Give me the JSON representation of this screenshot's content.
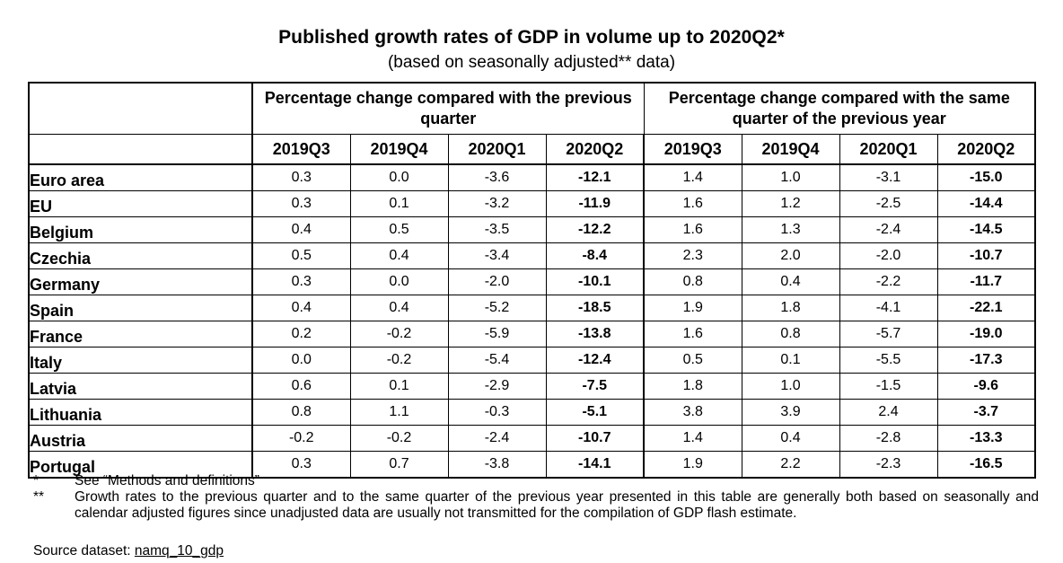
{
  "title": "Published growth rates of GDP in volume up to 2020Q2*",
  "subtitle": "(based on seasonally adjusted** data)",
  "table": {
    "group_headers": [
      "Percentage change compared with the previous quarter",
      "Percentage change compared with the same quarter of the previous year"
    ],
    "quarters": [
      "2019Q3",
      "2019Q4",
      "2020Q1",
      "2020Q2",
      "2019Q3",
      "2019Q4",
      "2020Q1",
      "2020Q2"
    ],
    "rows": [
      {
        "country": "Euro area",
        "values": [
          "0.3",
          "0.0",
          "-3.6",
          "-12.1",
          "1.4",
          "1.0",
          "-3.1",
          "-15.0"
        ]
      },
      {
        "country": "EU",
        "values": [
          "0.3",
          "0.1",
          "-3.2",
          "-11.9",
          "1.6",
          "1.2",
          "-2.5",
          "-14.4"
        ]
      },
      {
        "country": "Belgium",
        "values": [
          "0.4",
          "0.5",
          "-3.5",
          "-12.2",
          "1.6",
          "1.3",
          "-2.4",
          "-14.5"
        ]
      },
      {
        "country": "Czechia",
        "values": [
          "0.5",
          "0.4",
          "-3.4",
          "-8.4",
          "2.3",
          "2.0",
          "-2.0",
          "-10.7"
        ]
      },
      {
        "country": "Germany",
        "values": [
          "0.3",
          "0.0",
          "-2.0",
          "-10.1",
          "0.8",
          "0.4",
          "-2.2",
          "-11.7"
        ]
      },
      {
        "country": "Spain",
        "values": [
          "0.4",
          "0.4",
          "-5.2",
          "-18.5",
          "1.9",
          "1.8",
          "-4.1",
          "-22.1"
        ]
      },
      {
        "country": "France",
        "values": [
          "0.2",
          "-0.2",
          "-5.9",
          "-13.8",
          "1.6",
          "0.8",
          "-5.7",
          "-19.0"
        ]
      },
      {
        "country": "Italy",
        "values": [
          "0.0",
          "-0.2",
          "-5.4",
          "-12.4",
          "0.5",
          "0.1",
          "-5.5",
          "-17.3"
        ]
      },
      {
        "country": "Latvia",
        "values": [
          "0.6",
          "0.1",
          "-2.9",
          "-7.5",
          "1.8",
          "1.0",
          "-1.5",
          "-9.6"
        ]
      },
      {
        "country": "Lithuania",
        "values": [
          "0.8",
          "1.1",
          "-0.3",
          "-5.1",
          "3.8",
          "3.9",
          "2.4",
          "-3.7"
        ]
      },
      {
        "country": "Austria",
        "values": [
          "-0.2",
          "-0.2",
          "-2.4",
          "-10.7",
          "1.4",
          "0.4",
          "-2.8",
          "-13.3"
        ]
      },
      {
        "country": "Portugal",
        "values": [
          "0.3",
          "0.7",
          "-3.8",
          "-14.1",
          "1.9",
          "2.2",
          "-2.3",
          "-16.5"
        ]
      }
    ]
  },
  "notes": [
    {
      "mark": "*",
      "text": "See “Methods and definitions”"
    },
    {
      "mark": "**",
      "text": "Growth rates to the previous quarter and to the same quarter of the previous year presented in this table are generally both based on seasonally and calendar adjusted figures since unadjusted data are usually not transmitted for the compilation of GDP flash estimate."
    }
  ],
  "source": {
    "label": "Source dataset: ",
    "link_text": "namq_10_gdp"
  }
}
